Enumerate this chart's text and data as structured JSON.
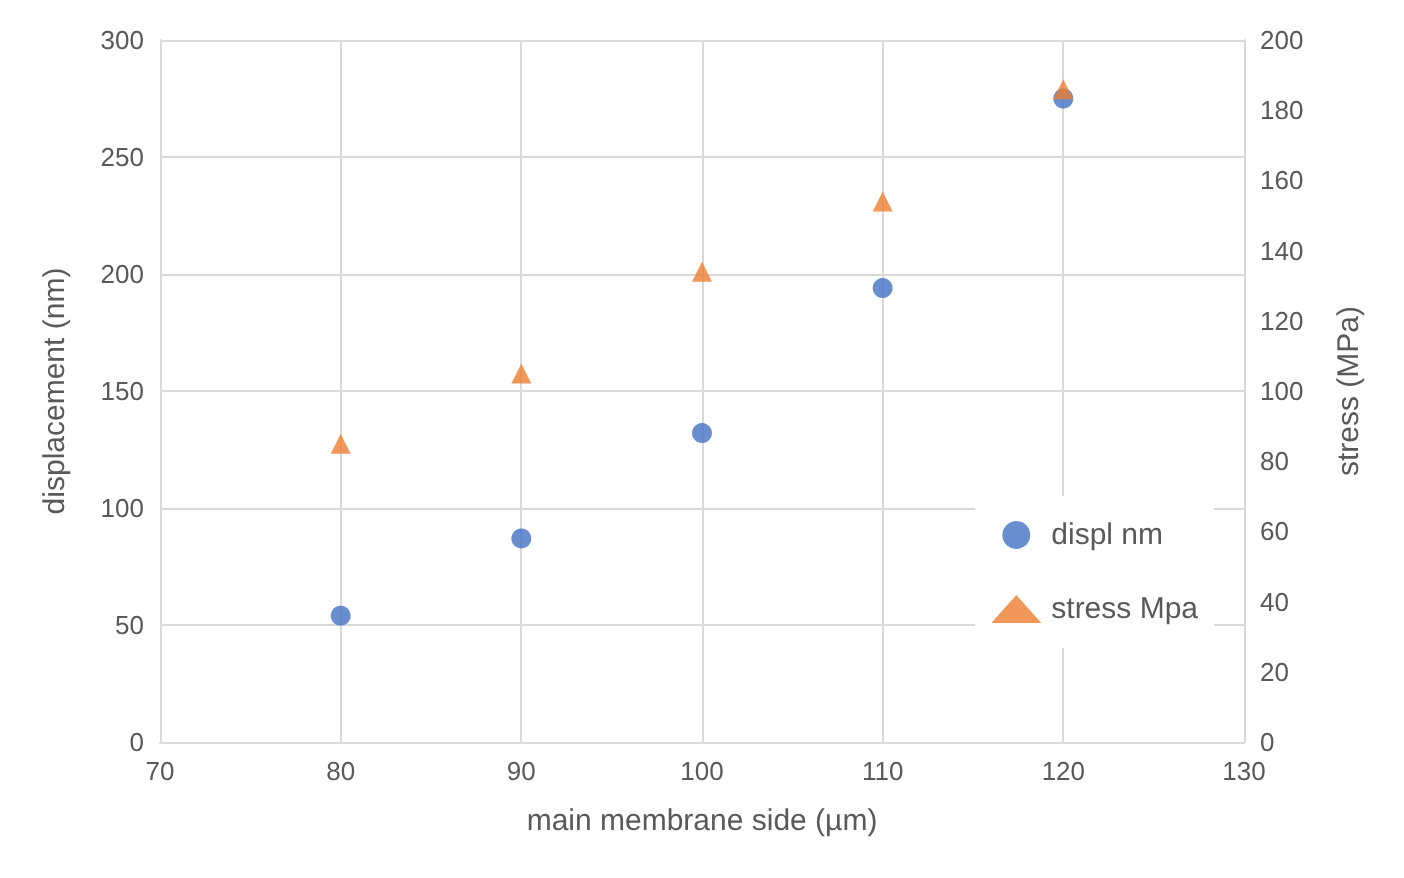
{
  "chart_data": {
    "type": "scatter",
    "xlabel": "main membrane side (µm)",
    "ylabel": "displacement (nm)",
    "y2label": "stress (MPa)",
    "x": [
      80,
      90,
      100,
      110,
      120
    ],
    "series": [
      {
        "name": "displ nm",
        "color": "#4472c4",
        "marker": "circle",
        "values": [
          54,
          87,
          132,
          194,
          275
        ]
      },
      {
        "name": "stress Mpa",
        "color": "#ed7d31",
        "marker": "triangle",
        "axis": "y2",
        "values": [
          85,
          105,
          134,
          154,
          186
        ]
      }
    ],
    "xlim": [
      70,
      130
    ],
    "xticks": [
      70,
      80,
      90,
      100,
      110,
      120,
      130
    ],
    "ylim": [
      0,
      300
    ],
    "yticks": [
      0,
      50,
      100,
      150,
      200,
      250,
      300
    ],
    "y2lim": [
      0,
      200
    ],
    "y2ticks": [
      0,
      20,
      40,
      60,
      80,
      100,
      120,
      140,
      160,
      180,
      200
    ],
    "grid": true,
    "legend": "right"
  }
}
